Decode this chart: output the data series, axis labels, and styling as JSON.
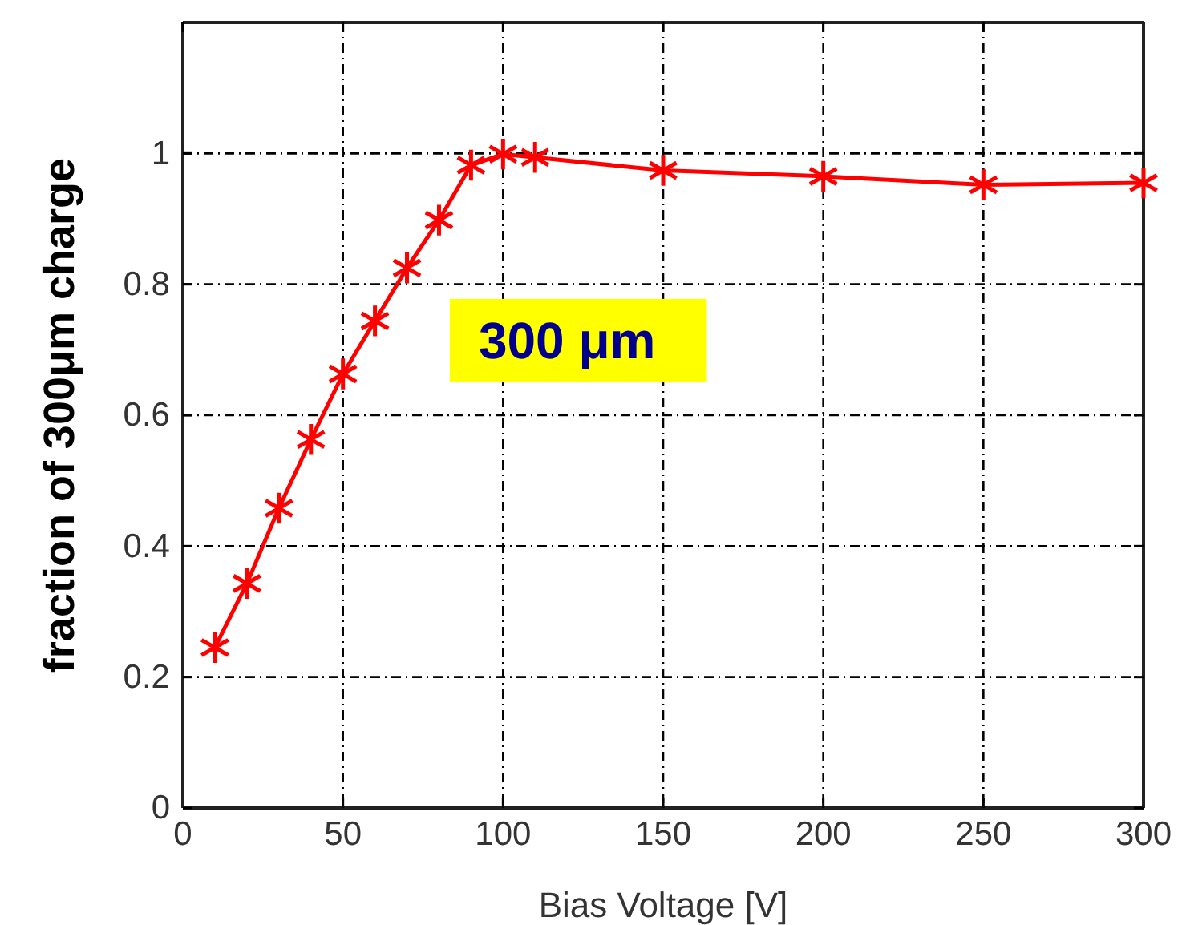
{
  "chart_data": {
    "type": "line",
    "xlabel": "Bias Voltage [V]",
    "ylabel": "fraction of 300μm charge",
    "annotations": [
      "300 μm"
    ],
    "x": [
      10,
      20,
      30,
      40,
      50,
      60,
      70,
      80,
      90,
      100,
      110,
      150,
      200,
      250,
      300
    ],
    "series": [
      {
        "color": "#ff0000",
        "values": [
          0.245,
          0.343,
          0.458,
          0.563,
          0.663,
          0.744,
          0.825,
          0.898,
          0.982,
          0.999,
          0.994,
          0.974,
          0.965,
          0.952,
          0.955
        ]
      }
    ],
    "xlim": [
      0,
      300
    ],
    "ylim": [
      0,
      1.2
    ],
    "xticks": [
      0,
      50,
      100,
      150,
      200,
      250,
      300
    ],
    "yticks": [
      0,
      0.2,
      0.4,
      0.6,
      0.8,
      1
    ],
    "grid": true,
    "marker": "cross",
    "line_style": "solid"
  }
}
